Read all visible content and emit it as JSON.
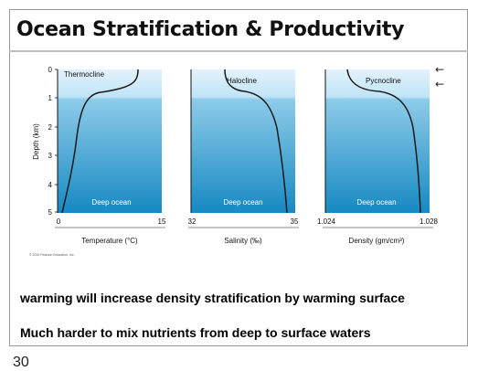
{
  "slide": {
    "title": "Ocean Stratification & Productivity",
    "page_number": "30"
  },
  "figure": {
    "y_axis_label": "Depth (km)",
    "y_ticks": [
      "0",
      "1",
      "2",
      "3",
      "4",
      "5"
    ],
    "copyright": "© 2010 Pearson Education, Inc.",
    "arrow_glyph": "←",
    "colors": {
      "surface_light": "#e3f2fb",
      "surface_band": "#bfe4f7",
      "deep_top": "#8dcbe9",
      "deep_bottom": "#1789c2",
      "curve": "#1a1a1a"
    },
    "panels": [
      {
        "curve_label": "Thermocline",
        "region_label": "Deep ocean",
        "x_min_label": "0",
        "x_max_label": "15",
        "x_axis_label": "Temperature (°C)"
      },
      {
        "curve_label": "Halocline",
        "region_label": "Deep ocean",
        "x_min_label": "32",
        "x_max_label": "35",
        "x_axis_label": "Salinity (‰)"
      },
      {
        "curve_label": "Pycnocline",
        "region_label": "Deep ocean",
        "x_min_label": "1.024",
        "x_max_label": "1.028",
        "x_axis_label": "Density (gm/cm³)"
      }
    ]
  },
  "captions": [
    "warming will increase density stratification by warming surface",
    "Much harder to mix nutrients from deep to surface waters"
  ]
}
